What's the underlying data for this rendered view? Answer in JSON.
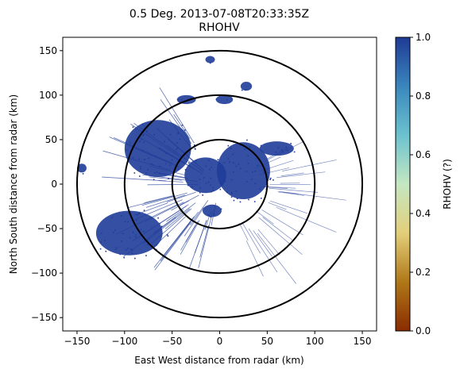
{
  "chart_data": {
    "type": "heatmap",
    "title_line1": "0.5 Deg. 2013-07-08T20:33:35Z",
    "title_line2": "RHOHV",
    "xlabel": "East West distance from radar (km)",
    "ylabel": "North South distance from radar (km)",
    "xlim": [
      -165,
      165
    ],
    "ylim": [
      -165,
      165
    ],
    "xticks": [
      -150,
      -100,
      -50,
      0,
      50,
      100,
      150
    ],
    "yticks": [
      -150,
      -100,
      -50,
      0,
      50,
      100,
      150
    ],
    "range_rings_km": [
      50,
      100,
      150
    ],
    "colorbar": {
      "label": "RHOHV (?)",
      "min": 0.0,
      "max": 1.0,
      "ticks": [
        "0.0",
        "0.2",
        "0.4",
        "0.6",
        "0.8",
        "1.0"
      ],
      "colors": [
        "#8a2b00",
        "#b07818",
        "#e3cf7a",
        "#c4e7c2",
        "#6cc2cf",
        "#3a86bd",
        "#1f3a95"
      ]
    },
    "echo_color": "#1f3c99",
    "echo_regions": [
      {
        "name": "main-west",
        "cx": -65,
        "cy": 40,
        "rx": 35,
        "ry": 32,
        "value": 0.97
      },
      {
        "name": "southwest-band",
        "cx": -95,
        "cy": -55,
        "rx": 35,
        "ry": 25,
        "value": 0.97
      },
      {
        "name": "center-east",
        "cx": 25,
        "cy": 15,
        "rx": 28,
        "ry": 32,
        "value": 0.97
      },
      {
        "name": "center",
        "cx": -15,
        "cy": 10,
        "rx": 22,
        "ry": 20,
        "value": 0.92
      },
      {
        "name": "northeast",
        "cx": 60,
        "cy": 40,
        "rx": 18,
        "ry": 8,
        "value": 0.96
      },
      {
        "name": "north-cell-1",
        "cx": -35,
        "cy": 95,
        "rx": 10,
        "ry": 5,
        "value": 0.97
      },
      {
        "name": "north-cell-2",
        "cx": 5,
        "cy": 95,
        "rx": 9,
        "ry": 5,
        "value": 0.97
      },
      {
        "name": "north-cell-3",
        "cx": -10,
        "cy": 140,
        "rx": 5,
        "ry": 4,
        "value": 0.97
      },
      {
        "name": "north-cell-4",
        "cx": 28,
        "cy": 110,
        "rx": 6,
        "ry": 5,
        "value": 0.97
      },
      {
        "name": "west-cell",
        "cx": -145,
        "cy": 18,
        "rx": 5,
        "ry": 5,
        "value": 0.97
      },
      {
        "name": "south-center",
        "cx": -8,
        "cy": -30,
        "rx": 10,
        "ry": 7,
        "value": 0.95
      }
    ]
  }
}
